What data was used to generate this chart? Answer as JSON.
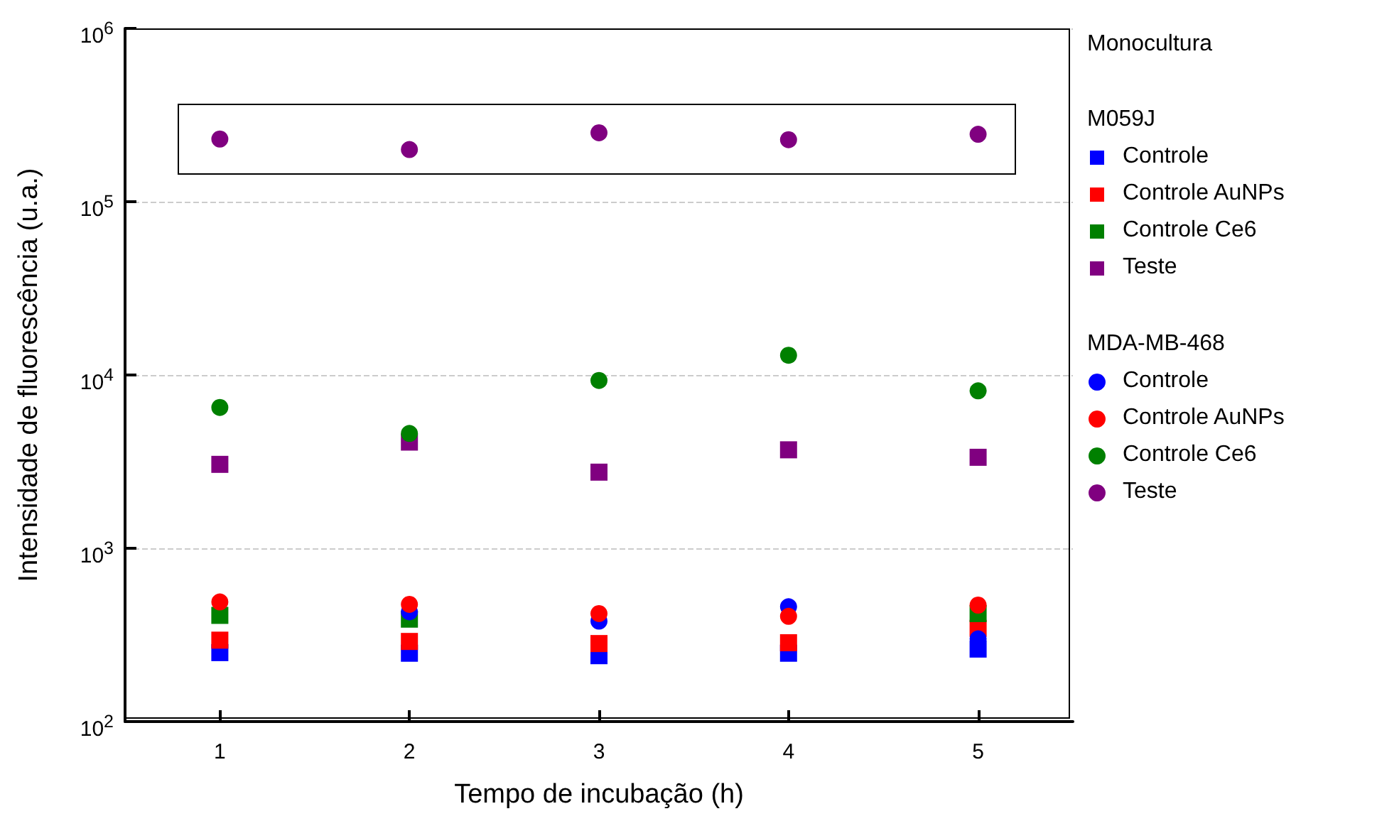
{
  "chart_data": {
    "type": "scatter",
    "xlabel": "Tempo de incubação (h)",
    "ylabel": "Intensidade de fluorescência (u.a.)",
    "legend_title": "Monocultura",
    "annotations": [
      "M059J",
      "MDA-MB-468"
    ],
    "x": [
      1,
      2,
      3,
      4,
      5
    ],
    "series": [
      {
        "name": "Controle",
        "color": "#0000ff",
        "marker": "square",
        "values": [
          250,
          248,
          240,
          248,
          262
        ]
      },
      {
        "name": "Controle AuNPs",
        "color": "#ff0000",
        "marker": "square",
        "values": [
          295,
          290,
          282,
          285,
          345
        ]
      },
      {
        "name": "Controle Ce6",
        "color": "#008000",
        "marker": "square",
        "values": [
          410,
          390,
          null,
          null,
          420
        ]
      },
      {
        "name": "Teste",
        "color": "#800080",
        "marker": "square",
        "values": [
          3050,
          4100,
          2750,
          3700,
          3350
        ]
      },
      {
        "name": "Controle",
        "color": "#0000ff",
        "marker": "circle",
        "values": [
          null,
          430,
          380,
          460,
          300
        ]
      },
      {
        "name": "Controle AuNPs",
        "color": "#ff0000",
        "marker": "circle",
        "values": [
          490,
          475,
          420,
          405,
          470
        ]
      },
      {
        "name": "Controle Ce6",
        "color": "#008000",
        "marker": "circle",
        "values": [
          6500,
          4600,
          9300,
          13000,
          8100
        ]
      },
      {
        "name": "Teste",
        "color": "#800080",
        "marker": "circle",
        "values": [
          230000,
          200000,
          250000,
          228000,
          245000
        ]
      }
    ],
    "log": "y",
    "xlim": [
      0.5,
      5.5
    ],
    "xticks": [
      1,
      2,
      3,
      4,
      5
    ],
    "ylim": [
      100,
      1000000
    ],
    "yticks": [
      {
        "value": 100,
        "label": "10$^{2}$"
      },
      {
        "value": 1000,
        "label": "10$^{3}$"
      },
      {
        "value": 10000,
        "label": "10$^{4}$"
      },
      {
        "value": 100000,
        "label": "10$^{5}$"
      },
      {
        "value": 1000000,
        "label": "10$^{6}$"
      }
    ],
    "grid": "y",
    "legend": "right"
  }
}
